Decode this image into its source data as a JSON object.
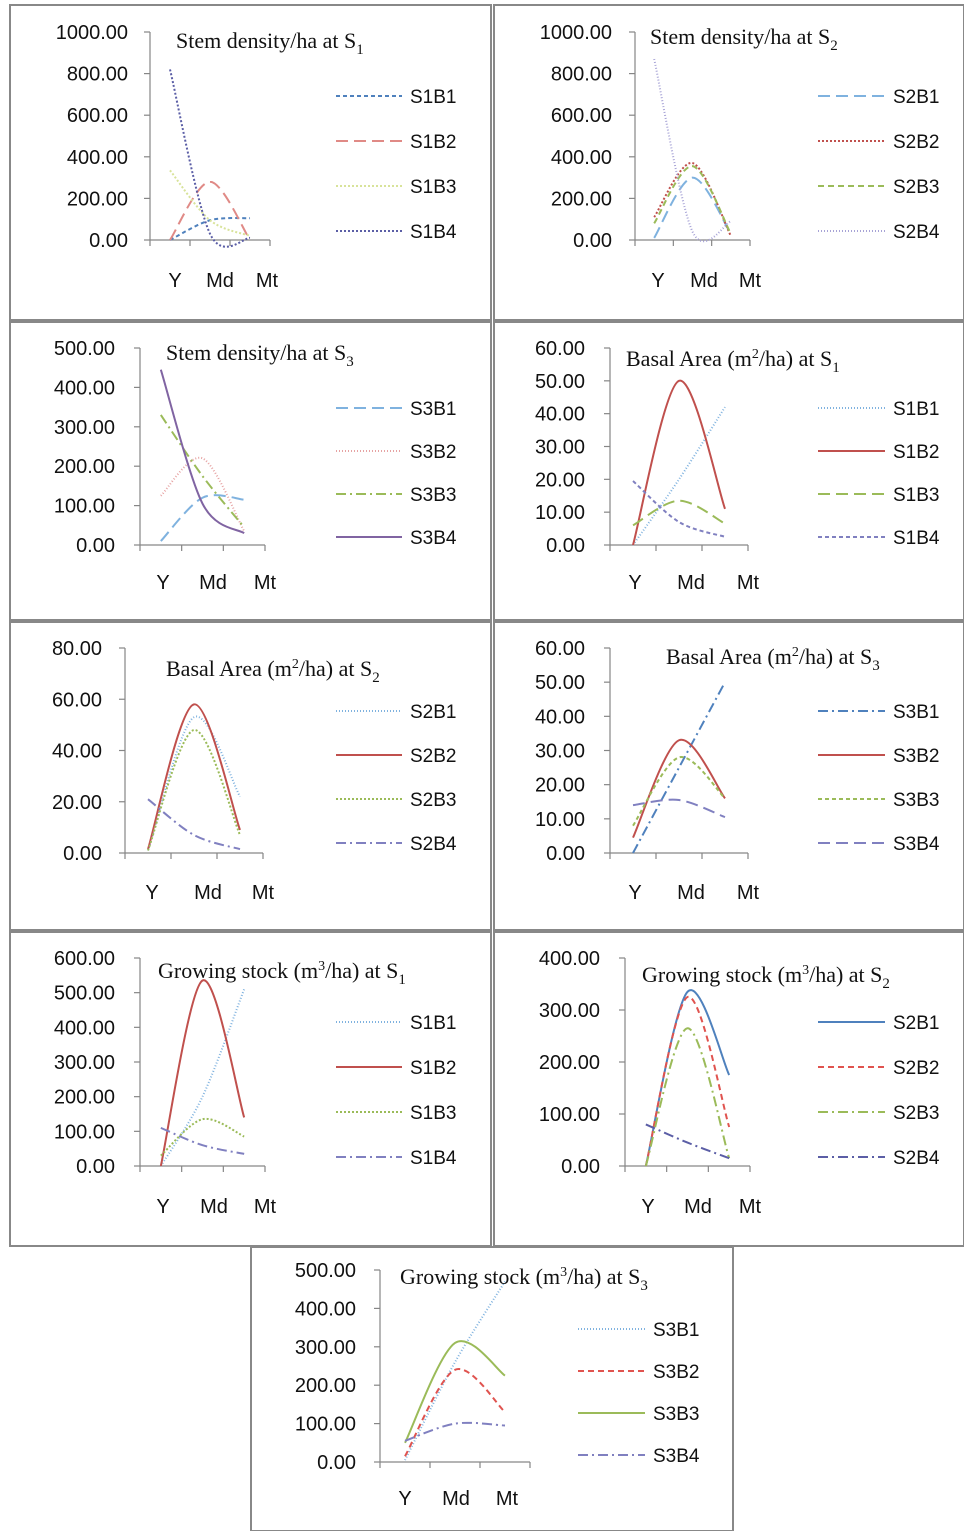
{
  "chart_data": [
    {
      "type": "line",
      "title": "Stem density/ha at S",
      "title_sub": "1",
      "title_rest": "",
      "categories": [
        "Y",
        "Md",
        "Mt"
      ],
      "yticks": [
        "0.00",
        "200.00",
        "400.00",
        "600.00",
        "800.00",
        "1000.00"
      ],
      "ylim": [
        0,
        1000
      ],
      "series": [
        {
          "name": "S1B1",
          "values": [
            0,
            95,
            105
          ],
          "color": "#4f81bd",
          "dash": "4 3"
        },
        {
          "name": "S1B2",
          "values": [
            0,
            280,
            0
          ],
          "color": "#e08a86",
          "dash": "12 6"
        },
        {
          "name": "S1B3",
          "values": [
            335,
            95,
            20
          ],
          "color": "#d8e39a",
          "dash": "2 2"
        },
        {
          "name": "S1B4",
          "values": [
            820,
            30,
            10
          ],
          "color": "#5b5ea6",
          "dash": "2 2"
        }
      ]
    },
    {
      "type": "line",
      "title": "Stem density/ha at S",
      "title_sub": "2",
      "title_rest": "",
      "categories": [
        "Y",
        "Md",
        "Mt"
      ],
      "yticks": [
        "0.00",
        "200.00",
        "400.00",
        "600.00",
        "800.00",
        "1000.00"
      ],
      "ylim": [
        0,
        1000
      ],
      "series": [
        {
          "name": "S2B1",
          "values": [
            10,
            300,
            30
          ],
          "color": "#7fb2df",
          "dash": "12 6"
        },
        {
          "name": "S2B2",
          "values": [
            110,
            370,
            20
          ],
          "color": "#c0504d",
          "dash": "2 2"
        },
        {
          "name": "S2B3",
          "values": [
            80,
            355,
            30
          ],
          "color": "#9bbb59",
          "dash": "6 4"
        },
        {
          "name": "S2B4",
          "values": [
            870,
            40,
            90
          ],
          "color": "#a7a3d6",
          "dash": "1 2"
        }
      ]
    },
    {
      "type": "line",
      "title": "Stem density/ha at S",
      "title_sub": "3",
      "title_rest": "",
      "categories": [
        "Y",
        "Md",
        "Mt"
      ],
      "yticks": [
        "0.00",
        "100.00",
        "200.00",
        "300.00",
        "400.00",
        "500.00"
      ],
      "ylim": [
        0,
        500
      ],
      "series": [
        {
          "name": "S3B1",
          "values": [
            10,
            120,
            115
          ],
          "color": "#7fb2df",
          "dash": "12 6"
        },
        {
          "name": "S3B2",
          "values": [
            125,
            220,
            35
          ],
          "color": "#e6a3a3",
          "dash": "1 2"
        },
        {
          "name": "S3B3",
          "values": [
            330,
            175,
            45
          ],
          "color": "#9bbb59",
          "dash": "10 4 2 4"
        },
        {
          "name": "S3B4",
          "values": [
            445,
            105,
            30
          ],
          "color": "#8064a2",
          "dash": ""
        }
      ]
    },
    {
      "type": "line",
      "title": "Basal Area (m",
      "title_sup": "2",
      "title_mid": "/ha) at S",
      "title_sub": "1",
      "categories": [
        "Y",
        "Md",
        "Mt"
      ],
      "yticks": [
        "0.00",
        "10.00",
        "20.00",
        "30.00",
        "40.00",
        "50.00",
        "60.00"
      ],
      "ylim": [
        0,
        60
      ],
      "series": [
        {
          "name": "S1B1",
          "values": [
            0,
            20,
            42
          ],
          "color": "#7fb2df",
          "dash": "1 2"
        },
        {
          "name": "S1B2",
          "values": [
            0,
            50,
            11
          ],
          "color": "#c0504d",
          "dash": ""
        },
        {
          "name": "S1B3",
          "values": [
            6,
            13.5,
            6.5
          ],
          "color": "#9bbb59",
          "dash": "12 6"
        },
        {
          "name": "S1B4",
          "values": [
            19.5,
            7,
            2.5
          ],
          "color": "#8080c0",
          "dash": "4 3"
        }
      ]
    },
    {
      "type": "line",
      "title": "Basal Area (m",
      "title_sup": "2",
      "title_mid": "/ha) at S",
      "title_sub": "2",
      "categories": [
        "Y",
        "Md",
        "Mt"
      ],
      "yticks": [
        "0.00",
        "20.00",
        "40.00",
        "60.00",
        "80.00"
      ],
      "ylim": [
        0,
        80
      ],
      "series": [
        {
          "name": "S2B1",
          "values": [
            1,
            53,
            22
          ],
          "color": "#7fb2df",
          "dash": "1 2"
        },
        {
          "name": "S2B2",
          "values": [
            1.5,
            58,
            9
          ],
          "color": "#c0504d",
          "dash": ""
        },
        {
          "name": "S2B3",
          "values": [
            1,
            48,
            7
          ],
          "color": "#9bbb59",
          "dash": "2 2"
        },
        {
          "name": "S2B4",
          "values": [
            21,
            7,
            1.5
          ],
          "color": "#8080c0",
          "dash": "10 4 2 4"
        }
      ]
    },
    {
      "type": "line",
      "title": "Basal Area (m",
      "title_sup": "2",
      "title_mid": "/ha) at S",
      "title_sub": "3",
      "categories": [
        "Y",
        "Md",
        "Mt"
      ],
      "yticks": [
        "0.00",
        "10.00",
        "20.00",
        "30.00",
        "40.00",
        "50.00",
        "60.00"
      ],
      "ylim": [
        0,
        60
      ],
      "series": [
        {
          "name": "S3B1",
          "values": [
            0,
            25,
            50
          ],
          "color": "#4f81bd",
          "dash": "10 4 2 4"
        },
        {
          "name": "S3B2",
          "values": [
            4.5,
            33,
            16
          ],
          "color": "#c0504d",
          "dash": ""
        },
        {
          "name": "S3B3",
          "values": [
            8,
            28,
            16
          ],
          "color": "#9bbb59",
          "dash": "4 3"
        },
        {
          "name": "S3B4",
          "values": [
            14,
            15.5,
            10.5
          ],
          "color": "#8080c0",
          "dash": "12 6"
        }
      ]
    },
    {
      "type": "line",
      "title": "Growing stock (m",
      "title_sup": "3",
      "title_mid": "/ha) at S",
      "title_sub": "1",
      "categories": [
        "Y",
        "Md",
        "Mt"
      ],
      "yticks": [
        "0.00",
        "100.00",
        "200.00",
        "300.00",
        "400.00",
        "500.00",
        "600.00"
      ],
      "ylim": [
        0,
        600
      ],
      "series": [
        {
          "name": "S1B1",
          "values": [
            0,
            200,
            510
          ],
          "color": "#7fb2df",
          "dash": "1 2"
        },
        {
          "name": "S1B2",
          "values": [
            0,
            535,
            140
          ],
          "color": "#c0504d",
          "dash": ""
        },
        {
          "name": "S1B3",
          "values": [
            30,
            135,
            85
          ],
          "color": "#9bbb59",
          "dash": "2 2"
        },
        {
          "name": "S1B4",
          "values": [
            110,
            60,
            35
          ],
          "color": "#8080c0",
          "dash": "10 4 2 4"
        }
      ]
    },
    {
      "type": "line",
      "title": "Growing stock (m",
      "title_sup": "3",
      "title_mid": "/ha) at S",
      "title_sub": "2",
      "categories": [
        "Y",
        "Md",
        "Mt"
      ],
      "yticks": [
        "0.00",
        "100.00",
        "200.00",
        "300.00",
        "400.00"
      ],
      "ylim": [
        0,
        400
      ],
      "series": [
        {
          "name": "S2B1",
          "values": [
            0,
            335,
            175
          ],
          "color": "#4f81bd",
          "dash": ""
        },
        {
          "name": "S2B2",
          "values": [
            0,
            325,
            75
          ],
          "color": "#e0534f",
          "dash": "6 4"
        },
        {
          "name": "S2B3",
          "values": [
            0,
            265,
            15
          ],
          "color": "#9bbb59",
          "dash": "10 4 2 4"
        },
        {
          "name": "S2B4",
          "values": [
            80,
            45,
            15
          ],
          "color": "#5b5ea6",
          "dash": "10 4 2 4"
        }
      ]
    },
    {
      "type": "line",
      "title": "Growing stock (m",
      "title_sup": "3",
      "title_mid": "/ha) at S",
      "title_sub": "3",
      "categories": [
        "Y",
        "Md",
        "Mt"
      ],
      "yticks": [
        "0.00",
        "100.00",
        "200.00",
        "300.00",
        "400.00",
        "500.00"
      ],
      "ylim": [
        0,
        500
      ],
      "series": [
        {
          "name": "S3B1",
          "values": [
            5,
            260,
            470
          ],
          "color": "#7fb2df",
          "dash": "1 2"
        },
        {
          "name": "S3B2",
          "values": [
            15,
            240,
            130
          ],
          "color": "#e0534f",
          "dash": "6 4"
        },
        {
          "name": "S3B3",
          "values": [
            50,
            310,
            225
          ],
          "color": "#9bbb59",
          "dash": ""
        },
        {
          "name": "S3B4",
          "values": [
            55,
            100,
            95
          ],
          "color": "#8080c0",
          "dash": "10 4 2 4"
        }
      ]
    }
  ]
}
